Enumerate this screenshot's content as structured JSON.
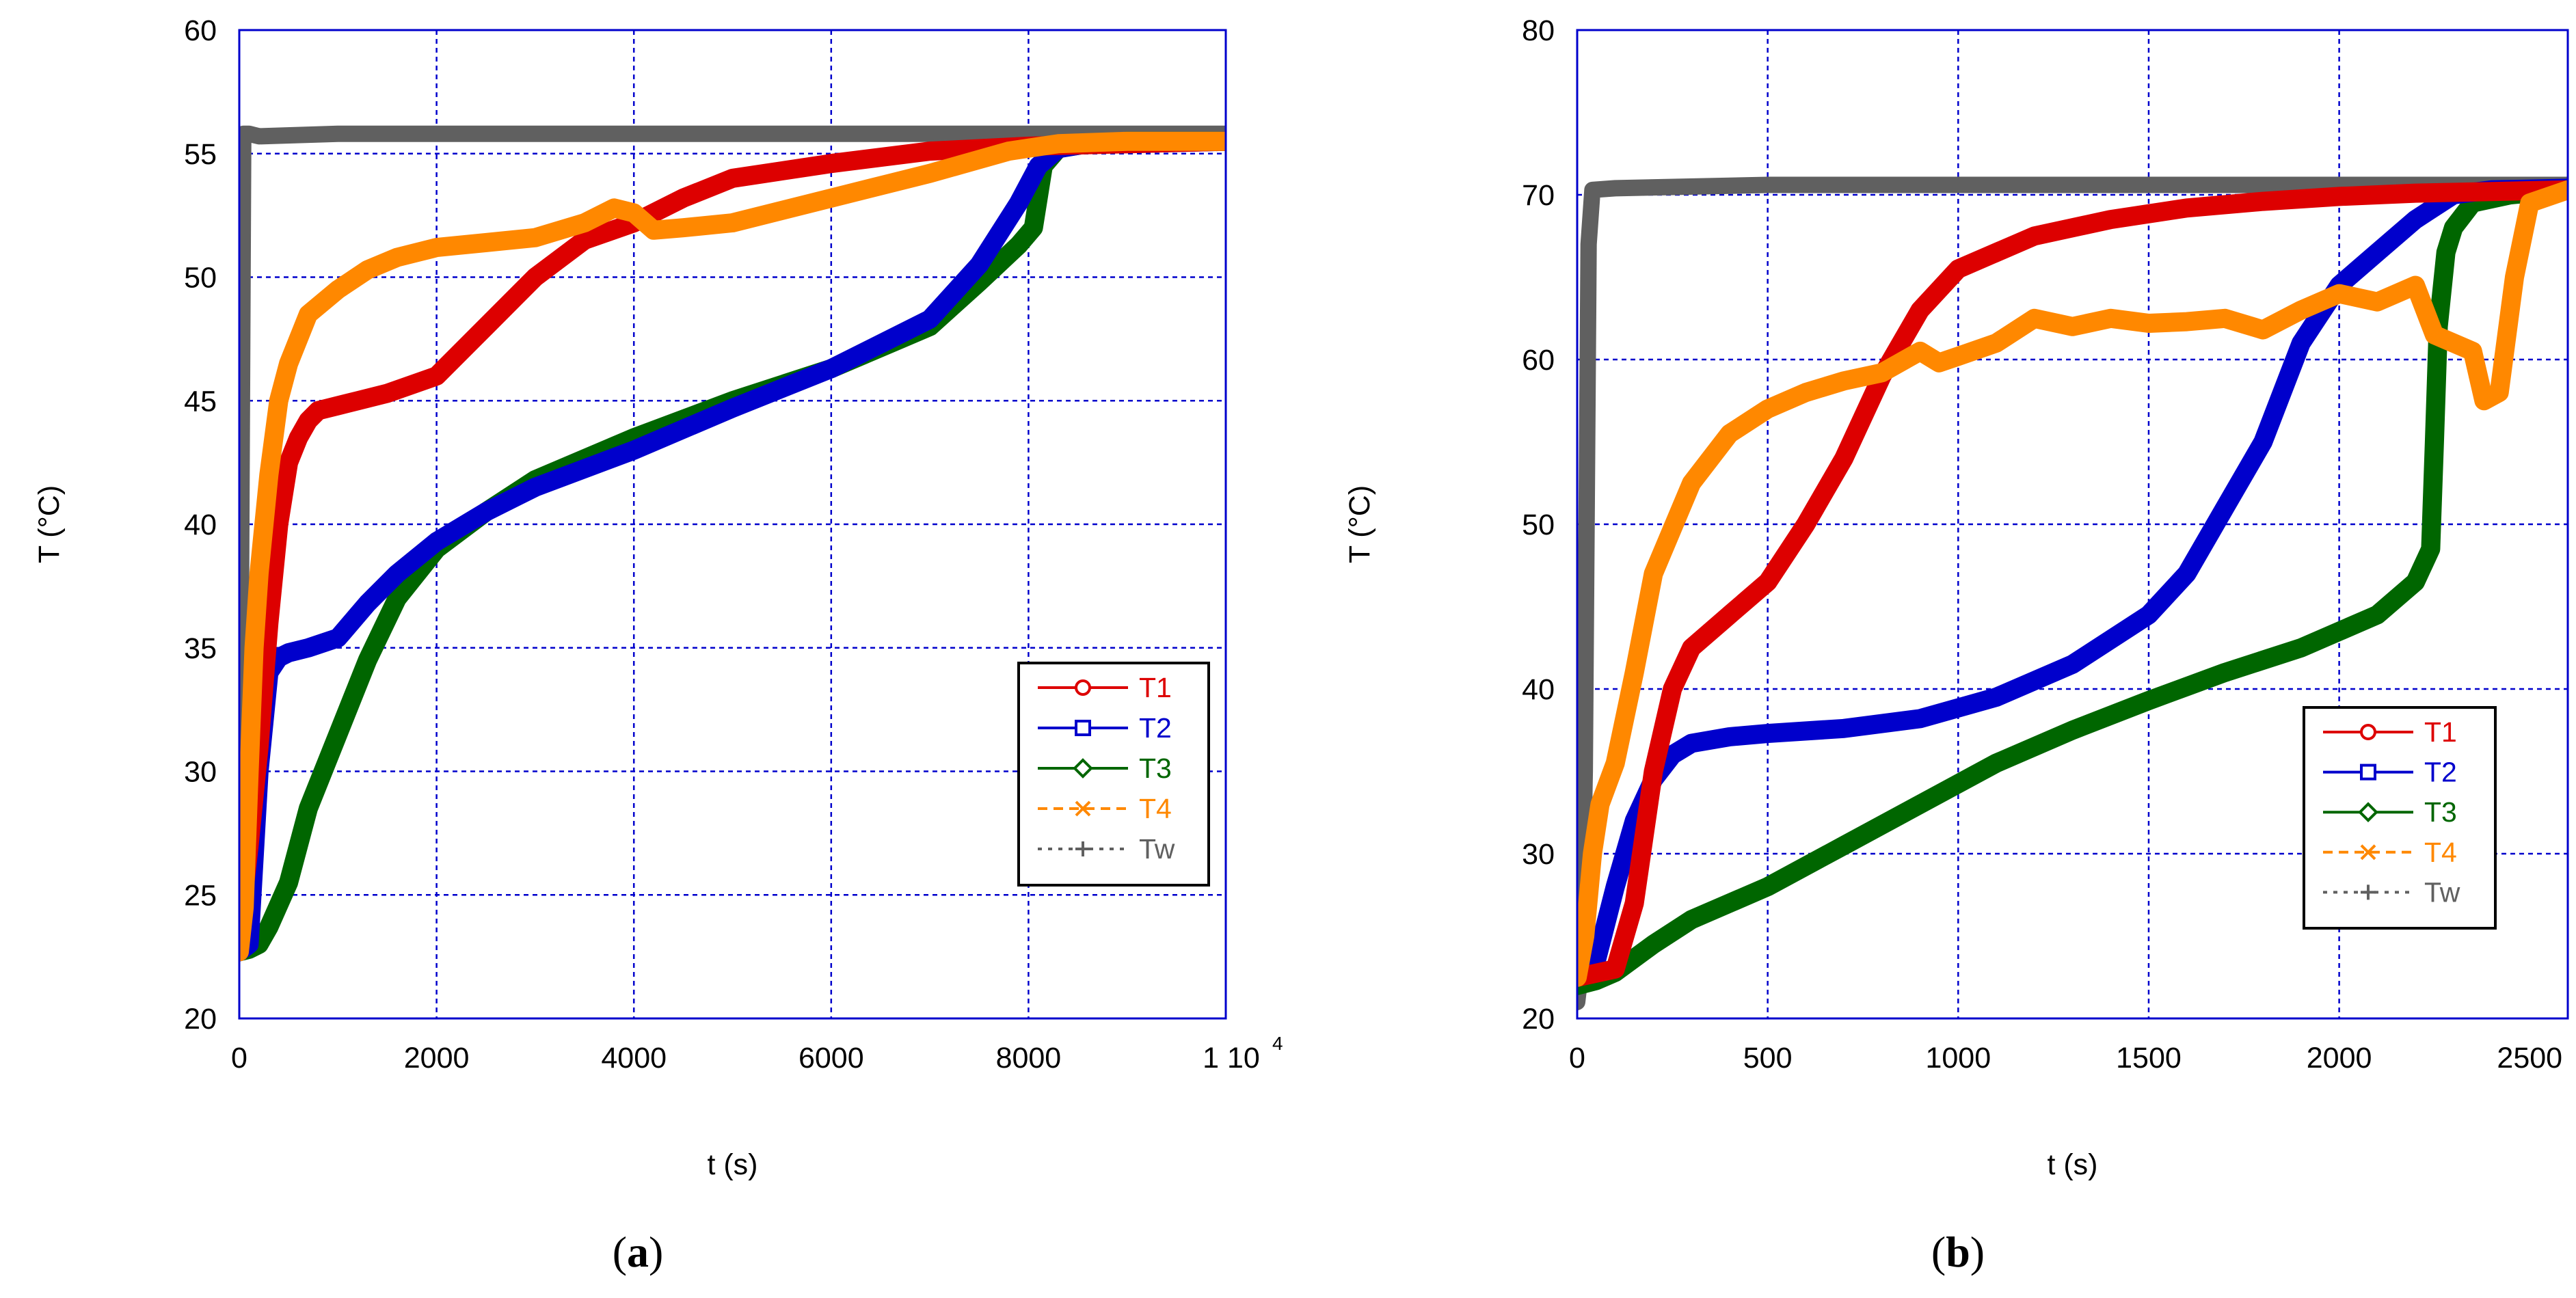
{
  "chart_data": [
    {
      "panel": "a",
      "caption_letter": "a",
      "type": "line",
      "xlabel": "t (s)",
      "ylabel": "T (°C)",
      "xlim": [
        0,
        10000
      ],
      "ylim": [
        20,
        60
      ],
      "xticks": [
        0,
        2000,
        4000,
        6000,
        8000,
        10000
      ],
      "xtick_labels": [
        "0",
        "2000",
        "4000",
        "6000",
        "8000",
        "1 10"
      ],
      "xtick_last_exponent": "4",
      "yticks": [
        20,
        25,
        30,
        35,
        40,
        45,
        50,
        55,
        60
      ],
      "ytick_labels": [
        "20",
        "25",
        "30",
        "35",
        "40",
        "45",
        "50",
        "55",
        "60"
      ],
      "grid": true,
      "legend_position": "bottom-right",
      "series": [
        {
          "name": "T1",
          "color": "#dd0000",
          "marker": "circle",
          "dash": "solid",
          "x": [
            0,
            100,
            200,
            300,
            400,
            500,
            600,
            700,
            800,
            1000,
            1200,
            1500,
            2000,
            2500,
            3000,
            3500,
            4000,
            4500,
            5000,
            6000,
            7000,
            8000,
            9000,
            10000
          ],
          "y": [
            23.5,
            27,
            31,
            36,
            40,
            42.5,
            43.5,
            44.2,
            44.6,
            44.8,
            45,
            45.3,
            46,
            48,
            50,
            51.5,
            52.2,
            53.2,
            54,
            54.6,
            55.1,
            55.3,
            55.4,
            55.5
          ]
        },
        {
          "name": "T2",
          "color": "#0000cc",
          "marker": "square",
          "dash": "solid",
          "x": [
            0,
            100,
            200,
            300,
            400,
            500,
            700,
            1000,
            1300,
            1600,
            2000,
            2500,
            3000,
            4000,
            5000,
            6000,
            7000,
            7500,
            7900,
            8100,
            8300,
            8600,
            9000,
            10000
          ],
          "y": [
            22.7,
            23,
            30,
            34,
            34.6,
            34.8,
            35,
            35.4,
            36.8,
            38,
            39.3,
            40.5,
            41.5,
            43,
            44.7,
            46.3,
            48.3,
            50.5,
            53,
            54.5,
            55.2,
            55.4,
            55.4,
            55.5
          ]
        },
        {
          "name": "T3",
          "color": "#006600",
          "marker": "diamond",
          "dash": "solid",
          "x": [
            0,
            100,
            200,
            300,
            500,
            700,
            1000,
            1300,
            1600,
            2000,
            2500,
            3000,
            4000,
            5000,
            6000,
            7000,
            7500,
            7900,
            8050,
            8150,
            8300,
            8600,
            9000,
            10000
          ],
          "y": [
            22.7,
            22.8,
            23,
            23.7,
            25.5,
            28.5,
            31.5,
            34.5,
            37,
            39,
            40.5,
            41.8,
            43.5,
            45,
            46.3,
            48,
            49.8,
            51.3,
            52,
            54.5,
            55.2,
            55.4,
            55.5,
            55.5
          ]
        },
        {
          "name": "T4",
          "color": "#ff8800",
          "marker": "cross",
          "dash": "dashed",
          "x": [
            0,
            50,
            100,
            150,
            200,
            300,
            400,
            500,
            700,
            1000,
            1300,
            1600,
            2000,
            2500,
            3000,
            3500,
            3800,
            4000,
            4200,
            4500,
            5000,
            6000,
            7000,
            7800,
            8300,
            9000,
            10000
          ],
          "y": [
            22.7,
            24.5,
            30,
            35,
            38,
            42,
            45,
            46.5,
            48.5,
            49.5,
            50.3,
            50.8,
            51.2,
            51.4,
            51.6,
            52.2,
            52.8,
            52.6,
            51.9,
            52,
            52.2,
            53.2,
            54.2,
            55.1,
            55.4,
            55.5,
            55.5
          ]
        },
        {
          "name": "Tw",
          "color": "#606060",
          "marker": "plus",
          "dash": "dotted",
          "x": [
            0,
            10,
            20,
            40,
            100,
            200,
            1000,
            3000,
            5000,
            7000,
            9000,
            10000
          ],
          "y": [
            22.7,
            29,
            39.5,
            55.8,
            55.8,
            55.7,
            55.8,
            55.8,
            55.8,
            55.8,
            55.8,
            55.8
          ]
        }
      ]
    },
    {
      "panel": "b",
      "caption_letter": "b",
      "type": "line",
      "xlabel": "t (s)",
      "ylabel": "T (°C)",
      "xlim": [
        0,
        2600
      ],
      "ylim": [
        20,
        80
      ],
      "xticks": [
        0,
        500,
        1000,
        1500,
        2000,
        2500
      ],
      "xtick_labels": [
        "0",
        "500",
        "1000",
        "1500",
        "2000",
        "2500"
      ],
      "yticks": [
        20,
        30,
        40,
        50,
        60,
        70,
        80
      ],
      "ytick_labels": [
        "20",
        "30",
        "40",
        "50",
        "60",
        "70",
        "80"
      ],
      "grid": true,
      "legend_position": "bottom-right",
      "series": [
        {
          "name": "T1",
          "color": "#dd0000",
          "marker": "circle",
          "dash": "solid",
          "x": [
            0,
            100,
            150,
            200,
            250,
            300,
            400,
            500,
            600,
            700,
            800,
            900,
            1000,
            1200,
            1400,
            1600,
            1800,
            2000,
            2200,
            2400,
            2600
          ],
          "y": [
            22.5,
            23,
            27,
            35,
            40,
            42.5,
            44.5,
            46.5,
            50,
            54,
            59,
            63,
            65.5,
            67.5,
            68.5,
            69.2,
            69.6,
            69.9,
            70.1,
            70.2,
            70.3
          ]
        },
        {
          "name": "T2",
          "color": "#0000cc",
          "marker": "square",
          "dash": "solid",
          "x": [
            0,
            50,
            100,
            150,
            200,
            250,
            300,
            400,
            500,
            700,
            900,
            1100,
            1300,
            1500,
            1600,
            1700,
            1800,
            1900,
            2000,
            2100,
            2200,
            2300,
            2400,
            2600
          ],
          "y": [
            22.5,
            23.5,
            28,
            32,
            34.5,
            36,
            36.7,
            37.1,
            37.3,
            37.6,
            38.2,
            39.5,
            41.5,
            44.5,
            47,
            51,
            55,
            61,
            64.5,
            66.5,
            68.5,
            70,
            70.3,
            70.4
          ]
        },
        {
          "name": "T3",
          "color": "#006600",
          "marker": "diamond",
          "dash": "solid",
          "x": [
            0,
            50,
            100,
            200,
            300,
            500,
            700,
            900,
            1100,
            1300,
            1500,
            1700,
            1900,
            2100,
            2200,
            2240,
            2250,
            2260,
            2280,
            2300,
            2350,
            2450,
            2600
          ],
          "y": [
            22,
            22.3,
            22.8,
            24.5,
            26,
            28,
            30.5,
            33,
            35.5,
            37.5,
            39.3,
            41,
            42.5,
            44.5,
            46.5,
            48.5,
            55,
            62,
            66.5,
            68,
            69.5,
            70,
            70.3
          ]
        },
        {
          "name": "T4",
          "color": "#ff8800",
          "marker": "cross",
          "dash": "dashed",
          "x": [
            0,
            20,
            40,
            60,
            100,
            150,
            200,
            300,
            400,
            500,
            600,
            700,
            800,
            900,
            950,
            1000,
            1100,
            1200,
            1300,
            1400,
            1500,
            1600,
            1700,
            1800,
            1900,
            2000,
            2100,
            2200,
            2250,
            2300,
            2350,
            2380,
            2420,
            2460,
            2500,
            2600
          ],
          "y": [
            22.5,
            25,
            30,
            33,
            35.5,
            41,
            47,
            52.5,
            55.5,
            57,
            58,
            58.7,
            59.2,
            60.5,
            59.8,
            60.2,
            61,
            62.5,
            62,
            62.5,
            62.2,
            62.3,
            62.5,
            61.8,
            63,
            64,
            63.5,
            64.5,
            61.5,
            61,
            60.5,
            57.5,
            58,
            65,
            69.5,
            70.3
          ]
        },
        {
          "name": "Tw",
          "color": "#606060",
          "marker": "plus",
          "dash": "dotted",
          "x": [
            0,
            10,
            20,
            30,
            40,
            100,
            500,
            1000,
            1500,
            2000,
            2500,
            2600
          ],
          "y": [
            21,
            23,
            35,
            67,
            70.3,
            70.4,
            70.6,
            70.6,
            70.6,
            70.6,
            70.6,
            70.6
          ]
        }
      ]
    }
  ]
}
